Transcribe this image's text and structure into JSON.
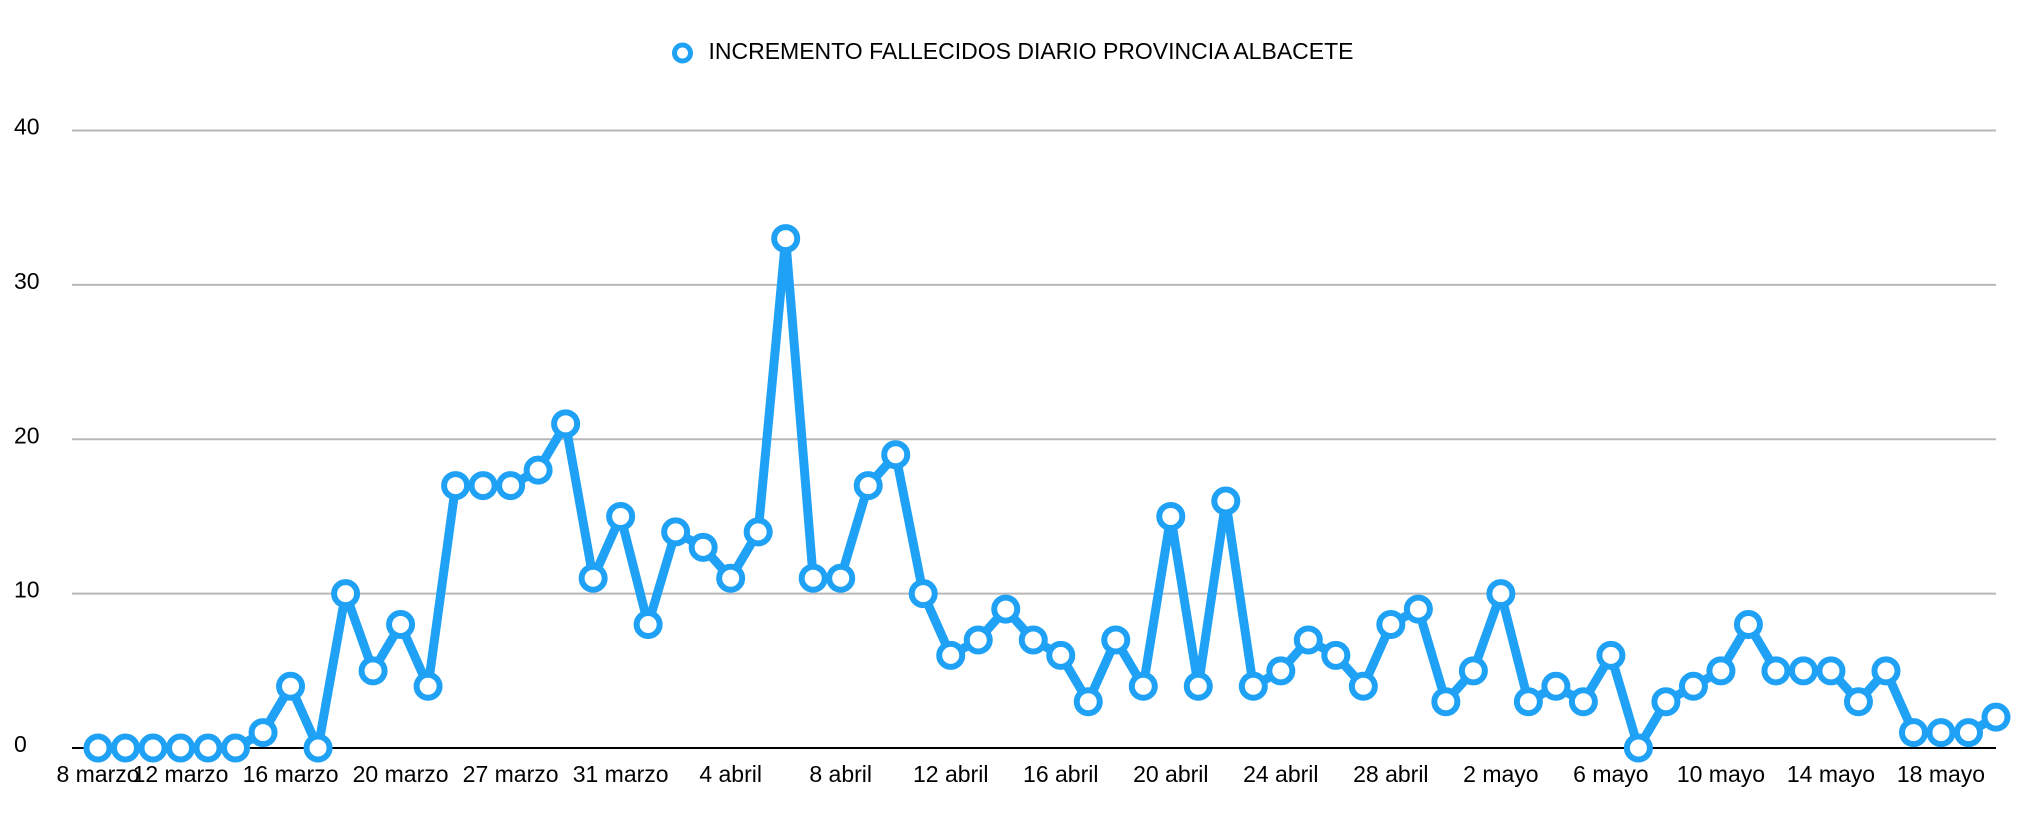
{
  "chart_data": {
    "type": "line",
    "categories": [
      "8 marzo",
      null,
      null,
      "12 marzo",
      null,
      null,
      null,
      "16 marzo",
      null,
      null,
      null,
      "20 marzo",
      null,
      null,
      null,
      "27 marzo",
      null,
      null,
      null,
      "31 marzo",
      null,
      null,
      null,
      "4 abril",
      null,
      null,
      null,
      "8 abril",
      null,
      null,
      null,
      "12 abril",
      null,
      null,
      null,
      "16 abril",
      null,
      null,
      null,
      "20 abril",
      null,
      null,
      null,
      "24 abril",
      null,
      null,
      null,
      "28 abril",
      null,
      null,
      null,
      "2 mayo",
      null,
      null,
      null,
      "6 mayo",
      null,
      null,
      null,
      "10 mayo",
      null,
      null,
      null,
      "14 mayo",
      null,
      null,
      null,
      "18 mayo",
      null,
      null
    ],
    "series": [
      {
        "name": "INCREMENTO FALLECIDOS DIARIO PROVINCIA ALBACETE",
        "color": "#1fa1f5",
        "values": [
          0,
          0,
          0,
          0,
          0,
          0,
          1,
          4,
          0,
          10,
          5,
          8,
          4,
          17,
          17,
          17,
          18,
          21,
          11,
          15,
          8,
          14,
          13,
          11,
          14,
          33,
          11,
          11,
          17,
          19,
          10,
          6,
          7,
          9,
          7,
          6,
          3,
          7,
          4,
          15,
          4,
          16,
          4,
          5,
          7,
          6,
          4,
          8,
          9,
          3,
          5,
          10,
          3,
          4,
          3,
          6,
          0,
          3,
          4,
          5,
          8,
          5,
          5,
          5,
          3,
          5,
          1,
          1,
          1,
          2
        ]
      }
    ],
    "ylim": [
      0,
      40
    ],
    "yticks": [
      0,
      10,
      20,
      30,
      40
    ],
    "grid": true,
    "legend": "top"
  }
}
